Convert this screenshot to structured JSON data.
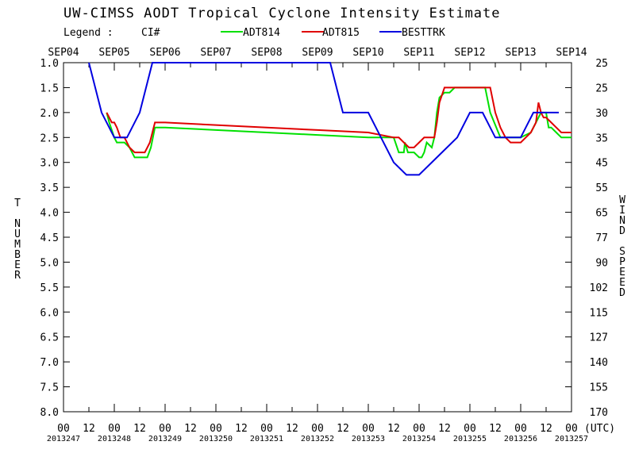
{
  "chart_data": {
    "type": "line",
    "title": "UW-CIMSS AODT Tropical Cyclone Intensity Estimate",
    "legend": {
      "label": "Legend :",
      "ci_label": "CI#",
      "entries": [
        {
          "name": "ADT814",
          "color": "#00e000"
        },
        {
          "name": "ADT815",
          "color": "#e00000"
        },
        {
          "name": "BESTTRK",
          "color": "#0000e0"
        }
      ]
    },
    "ylabel_left": [
      "T",
      "NUMBER"
    ],
    "ylabel_right": [
      "WIND",
      "SPEED"
    ],
    "xlabel_unit": "(UTC)",
    "ylim": [
      8.0,
      1.0
    ],
    "xlim_days": [
      0,
      10
    ],
    "grid": false,
    "top_dates": [
      "SEP04",
      "SEP05",
      "SEP06",
      "SEP07",
      "SEP08",
      "SEP09",
      "SEP10",
      "SEP11",
      "SEP12",
      "SEP13",
      "SEP14"
    ],
    "x_hour_ticks": [
      "00",
      "12",
      "00",
      "12",
      "00",
      "12",
      "00",
      "12",
      "00",
      "12",
      "00",
      "12",
      "00",
      "12",
      "00",
      "12",
      "00",
      "12",
      "00",
      "12",
      "00"
    ],
    "julian_dates": [
      "2013247",
      "2013248",
      "2013249",
      "2013250",
      "2013251",
      "2013252",
      "2013253",
      "2013254",
      "2013255",
      "2013256",
      "2013257"
    ],
    "y_ticks_left": [
      "1.0",
      "1.5",
      "2.0",
      "2.5",
      "3.0",
      "3.5",
      "4.0",
      "4.5",
      "5.0",
      "5.5",
      "6.0",
      "6.5",
      "7.0",
      "7.5",
      "8.0"
    ],
    "y_ticks_right": [
      "25",
      "25",
      "30",
      "35",
      "45",
      "55",
      "65",
      "77",
      "90",
      "102",
      "115",
      "127",
      "140",
      "155",
      "170"
    ],
    "series": [
      {
        "name": "ADT814",
        "color": "#00e000",
        "x": [
          0.85,
          0.9,
          1.0,
          1.05,
          1.2,
          1.3,
          1.4,
          1.5,
          1.6,
          1.65,
          1.72,
          1.8,
          2.0,
          3.0,
          4.0,
          5.0,
          6.0,
          6.5,
          6.6,
          6.7,
          6.72,
          6.78,
          6.9,
          7.0,
          7.05,
          7.1,
          7.15,
          7.25,
          7.3,
          7.35,
          7.4,
          7.5,
          7.6,
          7.7,
          8.0,
          8.2,
          8.3,
          8.4,
          8.6,
          8.8,
          8.9,
          9.0,
          9.2,
          9.3,
          9.4,
          9.5,
          9.55,
          9.6,
          9.7,
          9.8,
          10.0
        ],
        "y": [
          2.0,
          2.2,
          2.5,
          2.6,
          2.6,
          2.7,
          2.9,
          2.9,
          2.9,
          2.9,
          2.7,
          2.3,
          2.3,
          2.35,
          2.4,
          2.45,
          2.5,
          2.5,
          2.8,
          2.8,
          2.6,
          2.8,
          2.8,
          2.9,
          2.9,
          2.8,
          2.6,
          2.7,
          2.5,
          2.0,
          1.7,
          1.6,
          1.6,
          1.5,
          1.5,
          1.5,
          1.5,
          2.0,
          2.5,
          2.5,
          2.5,
          2.5,
          2.4,
          2.2,
          2.0,
          2.0,
          2.3,
          2.3,
          2.4,
          2.5,
          2.5
        ]
      },
      {
        "name": "ADT815",
        "color": "#e00000",
        "x": [
          0.85,
          0.9,
          0.95,
          1.0,
          1.05,
          1.12,
          1.2,
          1.3,
          1.4,
          1.5,
          1.6,
          1.65,
          1.7,
          1.75,
          1.8,
          2.0,
          3.0,
          4.0,
          5.0,
          6.0,
          6.5,
          6.6,
          6.8,
          6.9,
          7.0,
          7.1,
          7.2,
          7.3,
          7.35,
          7.4,
          7.5,
          7.6,
          8.0,
          8.2,
          8.3,
          8.4,
          8.5,
          8.6,
          8.7,
          8.8,
          8.9,
          8.95,
          9.0,
          9.1,
          9.2,
          9.3,
          9.35,
          9.4,
          9.45,
          9.5,
          9.6,
          9.7,
          9.8,
          10.0
        ],
        "y": [
          2.0,
          2.1,
          2.2,
          2.2,
          2.3,
          2.5,
          2.5,
          2.7,
          2.8,
          2.8,
          2.8,
          2.7,
          2.6,
          2.4,
          2.2,
          2.2,
          2.25,
          2.3,
          2.35,
          2.4,
          2.5,
          2.5,
          2.7,
          2.7,
          2.6,
          2.5,
          2.5,
          2.5,
          2.2,
          1.8,
          1.5,
          1.5,
          1.5,
          1.5,
          1.5,
          1.5,
          2.0,
          2.3,
          2.5,
          2.6,
          2.6,
          2.6,
          2.6,
          2.5,
          2.4,
          2.2,
          1.8,
          2.0,
          2.1,
          2.1,
          2.2,
          2.3,
          2.4,
          2.4
        ]
      },
      {
        "name": "BESTTRK",
        "color": "#0000e0",
        "x": [
          0.5,
          0.75,
          1.0,
          1.25,
          1.5,
          1.75,
          2.0,
          4.0,
          5.25,
          5.5,
          6.0,
          6.25,
          6.5,
          6.75,
          7.0,
          7.5,
          7.75,
          8.0,
          8.25,
          8.5,
          8.75,
          9.0,
          9.25,
          9.5,
          9.75
        ],
        "y": [
          1.0,
          2.0,
          2.5,
          2.5,
          2.0,
          1.0,
          1.0,
          1.0,
          1.0,
          2.0,
          2.0,
          2.5,
          3.0,
          3.25,
          3.25,
          2.75,
          2.5,
          2.0,
          2.0,
          2.5,
          2.5,
          2.5,
          2.0,
          2.0,
          2.0
        ]
      }
    ]
  }
}
